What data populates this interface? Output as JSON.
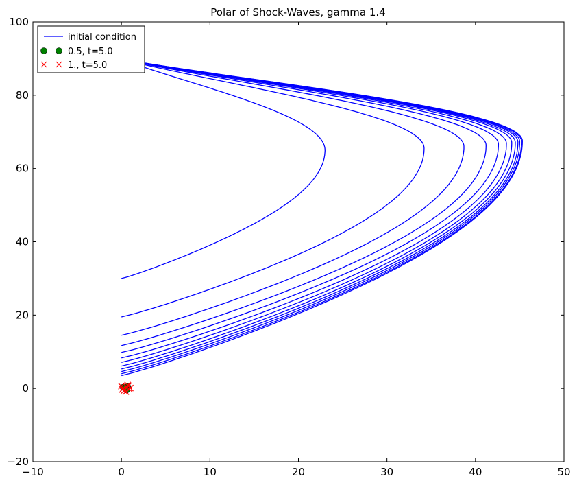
{
  "chart_data": {
    "type": "line",
    "title": "Polar of Shock-Waves, gamma 1.4",
    "xlabel": "",
    "ylabel": "",
    "xlim": [
      -10,
      50
    ],
    "ylim": [
      -20,
      100
    ],
    "xticks": [
      -10,
      0,
      10,
      20,
      30,
      40,
      50
    ],
    "yticks": [
      -20,
      0,
      20,
      40,
      60,
      80,
      100
    ],
    "xtick_labels": [
      "−10",
      "0",
      "10",
      "20",
      "30",
      "40",
      "50"
    ],
    "ytick_labels": [
      "−20",
      "0",
      "20",
      "40",
      "60",
      "80",
      "100"
    ],
    "grid": false,
    "legend_position": "top-left",
    "legend": [
      {
        "label": "initial condition",
        "marker": "line",
        "color": "#0000ff"
      },
      {
        "label": "0.5, t=5.0",
        "marker": "circle",
        "color": "#008000"
      },
      {
        "label": "1., t=5.0",
        "marker": "x",
        "color": "#ff0000"
      }
    ],
    "curves_common": {
      "y_end": 90,
      "x_end": 0
    },
    "curves": [
      {
        "y_start": 30.0,
        "x_max": 23.0,
        "y_at_max": 65.0
      },
      {
        "y_start": 19.5,
        "x_max": 34.2,
        "y_at_max": 65.5
      },
      {
        "y_start": 14.5,
        "x_max": 38.7,
        "y_at_max": 66.0
      },
      {
        "y_start": 11.7,
        "x_max": 41.2,
        "y_at_max": 66.3
      },
      {
        "y_start": 9.8,
        "x_max": 42.6,
        "y_at_max": 66.6
      },
      {
        "y_start": 8.3,
        "x_max": 43.5,
        "y_at_max": 66.8
      },
      {
        "y_start": 7.1,
        "x_max": 44.1,
        "y_at_max": 67.0
      },
      {
        "y_start": 6.1,
        "x_max": 44.5,
        "y_at_max": 67.1
      },
      {
        "y_start": 5.3,
        "x_max": 44.8,
        "y_at_max": 67.2
      },
      {
        "y_start": 4.6,
        "x_max": 45.0,
        "y_at_max": 67.3
      },
      {
        "y_start": 4.0,
        "x_max": 45.2,
        "y_at_max": 67.4
      },
      {
        "y_start": 3.5,
        "x_max": 45.3,
        "y_at_max": 67.5
      }
    ],
    "green_points": [
      {
        "x": 0.2,
        "y": 0.3
      },
      {
        "x": 0.5,
        "y": -0.2
      },
      {
        "x": 0.7,
        "y": 0.5
      },
      {
        "x": 0.4,
        "y": 0.1
      },
      {
        "x": 0.6,
        "y": -0.4
      }
    ],
    "red_points": [
      {
        "x": 0.0,
        "y": 0.6
      },
      {
        "x": 0.3,
        "y": -0.6
      },
      {
        "x": 0.6,
        "y": 0.4
      },
      {
        "x": 0.9,
        "y": -0.2
      },
      {
        "x": 0.2,
        "y": 0.0
      },
      {
        "x": 0.8,
        "y": 0.7
      },
      {
        "x": 1.0,
        "y": 0.1
      },
      {
        "x": 0.5,
        "y": -0.9
      },
      {
        "x": 0.1,
        "y": -0.3
      },
      {
        "x": 0.7,
        "y": 0.9
      }
    ]
  }
}
